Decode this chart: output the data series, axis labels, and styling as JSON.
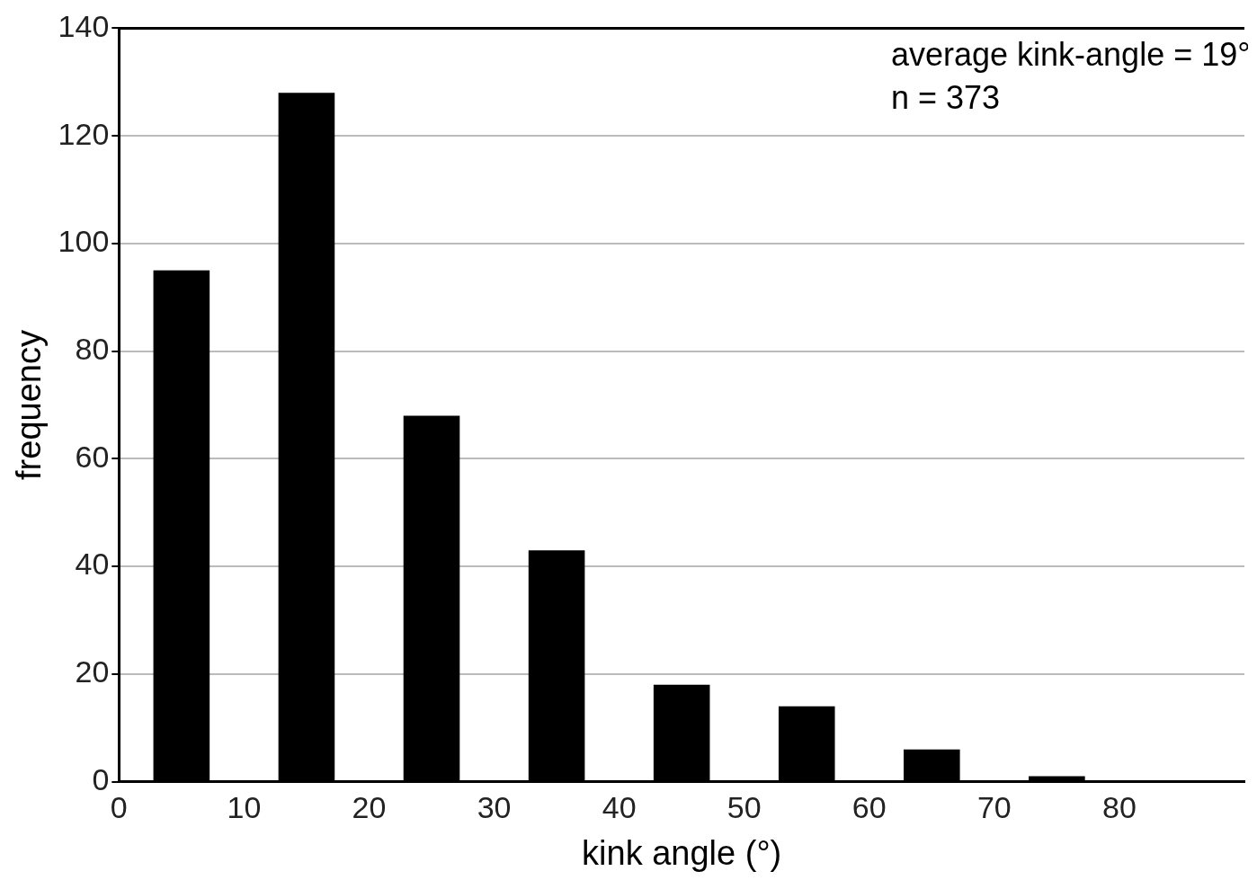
{
  "chart_data": {
    "type": "histogram",
    "xlabel": "kink angle (°)",
    "ylabel": "frequency",
    "bins": [
      0,
      10,
      20,
      30,
      40,
      50,
      60,
      70,
      80
    ],
    "values": [
      95,
      128,
      68,
      43,
      18,
      14,
      6,
      1
    ],
    "color": "#000000",
    "xlim": [
      0,
      90
    ],
    "xticks": [
      0,
      10,
      20,
      30,
      40,
      50,
      60,
      70,
      80
    ],
    "ylim": [
      0,
      140
    ],
    "yticks": [
      0,
      20,
      40,
      60,
      80,
      100,
      120,
      140
    ],
    "grid": "y",
    "annotations": [
      "average kink-angle = 19°",
      "n = 373"
    ]
  }
}
